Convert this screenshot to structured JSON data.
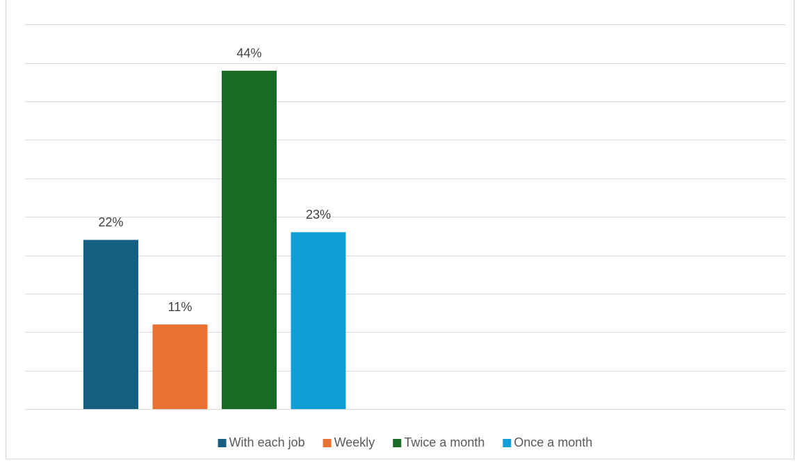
{
  "chart_data": {
    "type": "bar",
    "series": [
      {
        "name": "With each job",
        "color": "#156082",
        "values": [
          22
        ],
        "value_labels": [
          "22%"
        ]
      },
      {
        "name": "Weekly",
        "color": "#e97132",
        "values": [
          11
        ],
        "value_labels": [
          "11%"
        ]
      },
      {
        "name": "Twice a month",
        "color": "#196b24",
        "values": [
          44
        ],
        "value_labels": [
          "44%"
        ]
      },
      {
        "name": "Once a month",
        "color": "#0f9ed5",
        "values": [
          23
        ],
        "value_labels": [
          "23%"
        ]
      }
    ],
    "ylim": [
      0,
      50
    ],
    "yticks": [
      0,
      5,
      10,
      15,
      20,
      25,
      30,
      35,
      40,
      45,
      50
    ],
    "grid": true,
    "legend": "bottom"
  }
}
